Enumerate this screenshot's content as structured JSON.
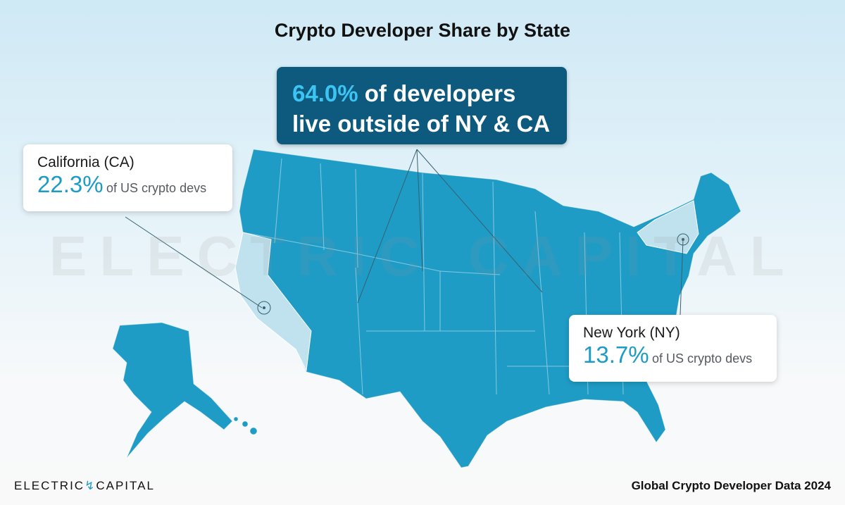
{
  "header": {
    "title": "Crypto Developer Share by State"
  },
  "callout_main": {
    "highlight": "64.0%",
    "text_line1": "of developers",
    "text_line2": "live outside of NY & CA"
  },
  "california": {
    "label": "California (CA)",
    "value": "22.3%",
    "text": "of US crypto devs"
  },
  "new_york": {
    "label": "New York (NY)",
    "value": "13.7%",
    "text": "of US crypto devs"
  },
  "watermark": {
    "left": "ELECTRIC",
    "right": "CAPITAL"
  },
  "footer": {
    "logo_left": "ELECTRIC",
    "logo_right": "CAPITAL",
    "source": "Global Crypto Developer Data 2024"
  }
}
